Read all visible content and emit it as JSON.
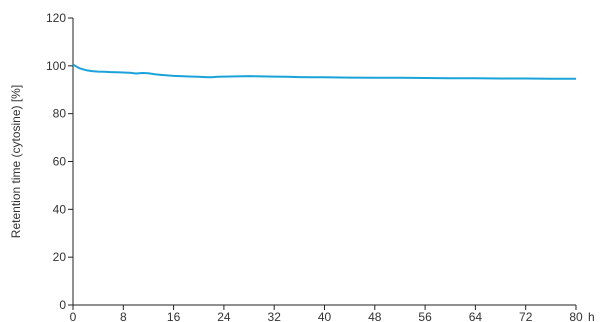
{
  "chart_data": {
    "type": "line",
    "title": "",
    "xlabel": "h",
    "ylabel": "Retention time (cytosine) [%]",
    "xlim": [
      0,
      80
    ],
    "ylim": [
      0,
      120
    ],
    "x_ticks": [
      0,
      8,
      16,
      24,
      32,
      40,
      48,
      56,
      64,
      72,
      80
    ],
    "y_ticks": [
      0,
      20,
      40,
      60,
      80,
      100,
      120
    ],
    "grid": false,
    "legend": "none",
    "series": [
      {
        "color": "#1aa3d9",
        "x": [
          0,
          0.5,
          1,
          2,
          3,
          4,
          5,
          6,
          7,
          8,
          9,
          10,
          11,
          12,
          13,
          14,
          15,
          16,
          17,
          18,
          19,
          20,
          21,
          22,
          23,
          24,
          26,
          28,
          30,
          32,
          34,
          36,
          38,
          40,
          44,
          48,
          52,
          56,
          60,
          64,
          68,
          72,
          76,
          80
        ],
        "y": [
          100.5,
          99.8,
          99.0,
          98.2,
          97.8,
          97.6,
          97.5,
          97.4,
          97.3,
          97.2,
          97.1,
          96.8,
          97.0,
          96.9,
          96.5,
          96.2,
          96.0,
          95.8,
          95.7,
          95.6,
          95.5,
          95.4,
          95.3,
          95.2,
          95.4,
          95.5,
          95.6,
          95.7,
          95.6,
          95.5,
          95.4,
          95.3,
          95.2,
          95.2,
          95.1,
          95.0,
          95.0,
          94.9,
          94.8,
          94.8,
          94.7,
          94.7,
          94.6,
          94.6
        ]
      }
    ]
  }
}
